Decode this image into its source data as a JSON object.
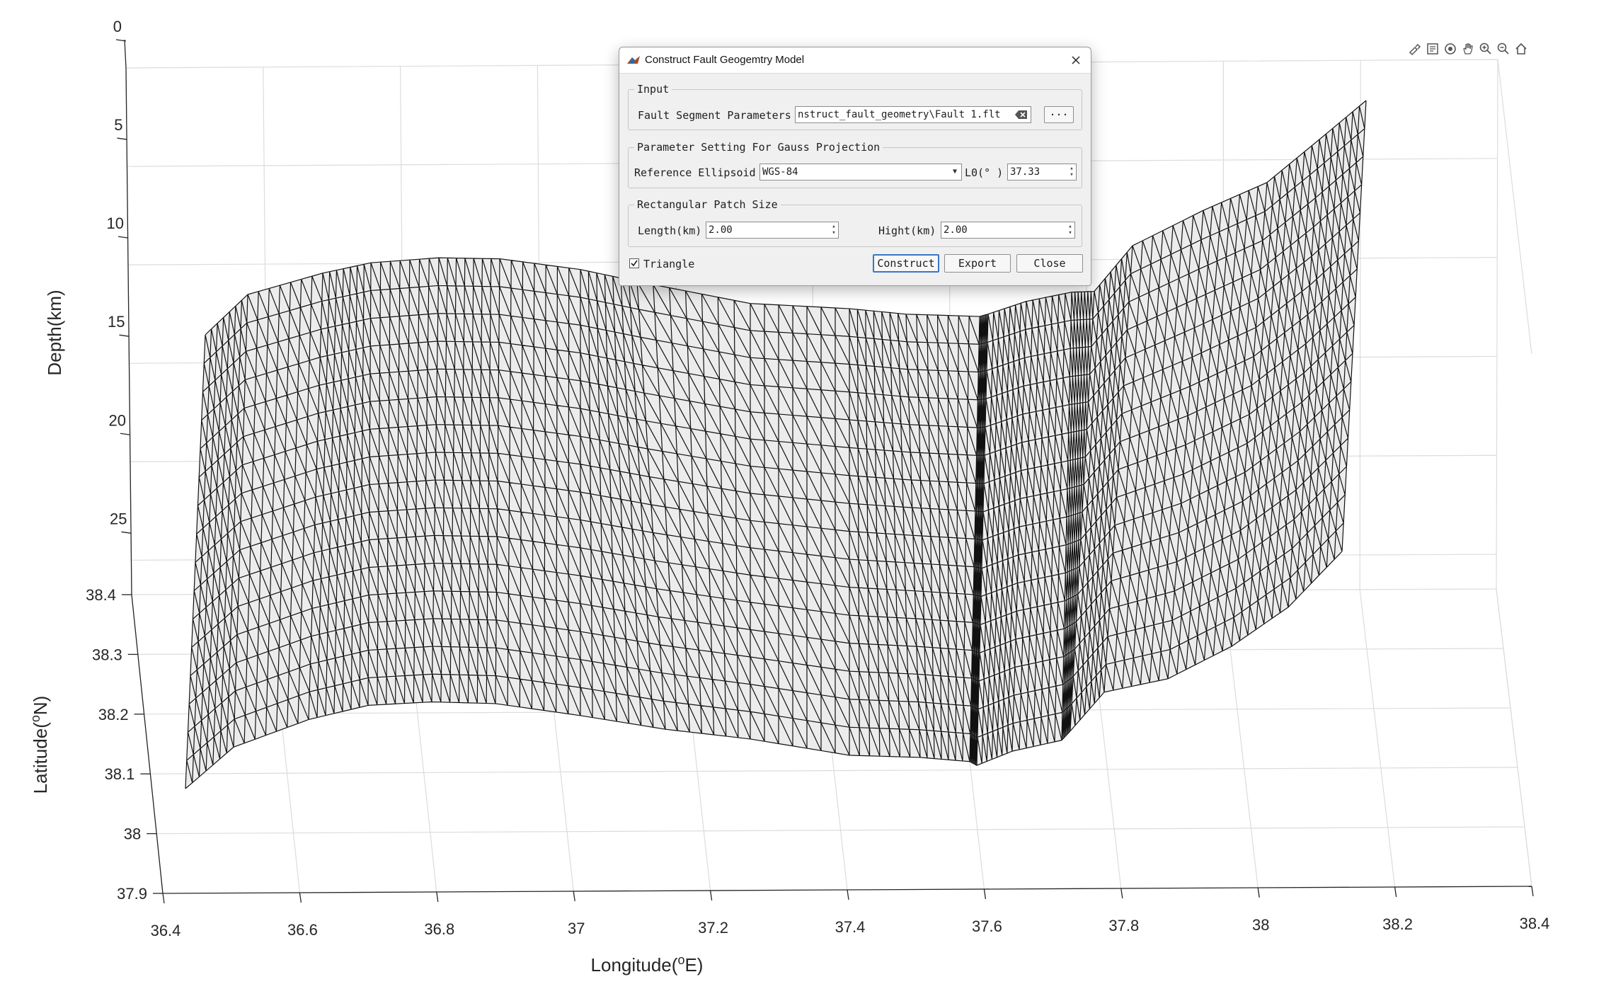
{
  "figure": {
    "depth_axis": {
      "label": "Depth(km)",
      "ticks": [
        "0",
        "5",
        "10",
        "15",
        "20",
        "25"
      ]
    },
    "latitude_axis": {
      "label": "Latitude(",
      "label_sup": "o",
      "label_tail": "N)",
      "ticks": [
        "38.4",
        "38.3",
        "38.2",
        "38.1",
        "38",
        "37.9"
      ]
    },
    "longitude_axis": {
      "label": "Longitude(",
      "label_sup": "o",
      "label_tail": "E)",
      "ticks": [
        "36.4",
        "36.6",
        "36.8",
        "37",
        "37.2",
        "37.4",
        "37.6",
        "37.8",
        "38",
        "38.2",
        "38.4"
      ]
    },
    "mesh": {
      "type": "triangulated fault surface",
      "edge_color": "#111111",
      "face_color": "#ececec"
    }
  },
  "toolbar": {
    "icons": [
      "brush-icon",
      "datatip-icon",
      "rotate-icon",
      "pan-icon",
      "zoom-in-icon",
      "zoom-out-icon",
      "home-icon"
    ]
  },
  "dialog": {
    "title": "Construct Fault Geogemtry Model",
    "input_group": {
      "legend": "Input",
      "fault_label": "Fault Segment Parameters",
      "fault_path": "nstruct_fault_geometry\\Fault 1.flt",
      "browse_label": "···"
    },
    "gauss_group": {
      "legend": "Parameter Setting For Gauss Projection",
      "ellipsoid_label": "Reference Ellipsoid",
      "ellipsoid_value": "WGS-84",
      "l0_label": "L0(° )",
      "l0_value": "37.33"
    },
    "patch_group": {
      "legend": "Rectangular Patch Size",
      "length_label": "Length(km)",
      "length_value": "2.00",
      "height_label": "Hight(km)",
      "height_value": "2.00"
    },
    "triangle_label": "Triangle",
    "triangle_checked": true,
    "construct_label": "Construct",
    "export_label": "Export",
    "close_label": "Close"
  }
}
